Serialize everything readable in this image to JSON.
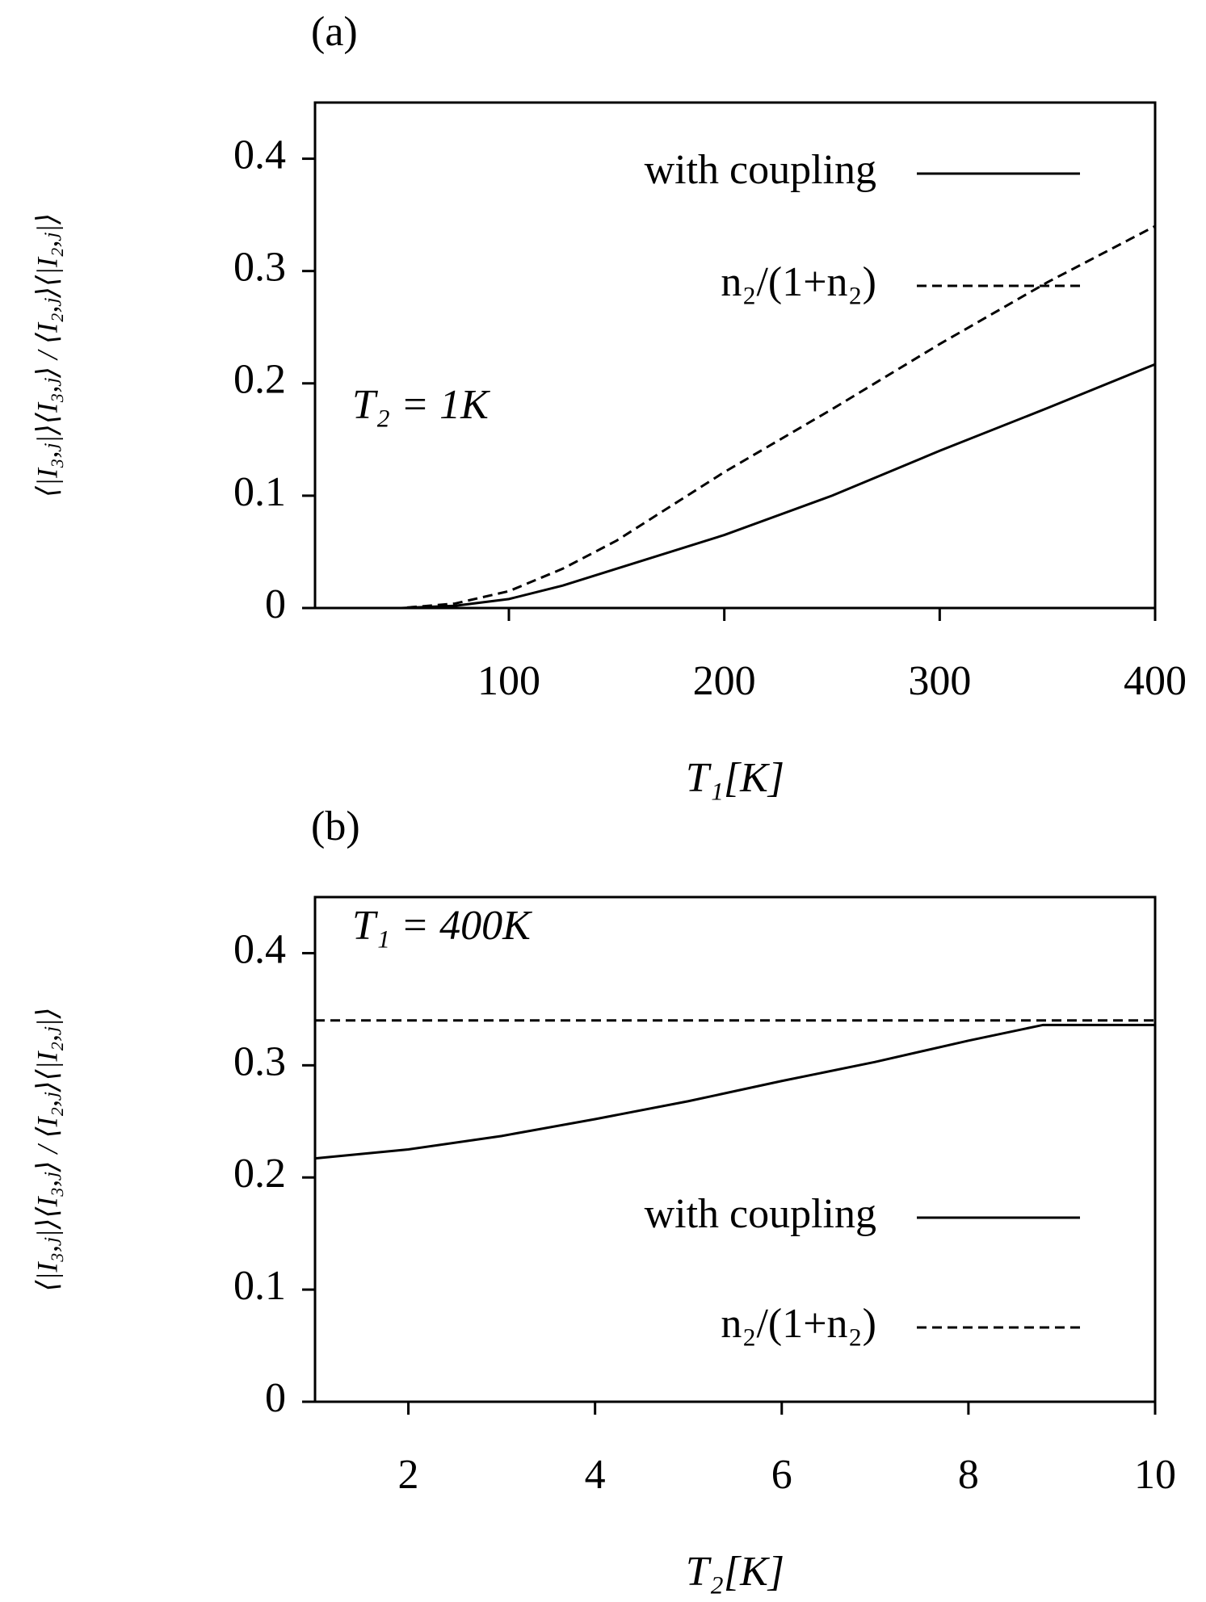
{
  "chart_data": [
    {
      "type": "line",
      "panel_label": "(a)",
      "annotation": "T₂ = 1K",
      "xlabel": "T₁[K]",
      "ylabel": "⟨|I₃,ⱼ|⟩⟨I₃,ⱼ⟩ / ⟨I₂,ⱼ⟩⟨|I₂,ⱼ|⟩",
      "x": [
        10,
        25,
        50,
        75,
        100,
        125,
        150,
        200,
        250,
        300,
        350,
        400
      ],
      "series": [
        {
          "name": "with coupling",
          "color": "#000000",
          "style": "solid",
          "values": [
            0,
            0,
            0,
            0.002,
            0.008,
            0.02,
            0.035,
            0.065,
            0.1,
            0.14,
            0.178,
            0.217
          ]
        },
        {
          "name": "n₂/(1+n₂)",
          "color": "#000000",
          "style": "dashed",
          "values": [
            0,
            0,
            0,
            0.004,
            0.015,
            0.035,
            0.06,
            0.121,
            0.177,
            0.235,
            0.29,
            0.34
          ]
        }
      ],
      "xlim": [
        10,
        400
      ],
      "xticks": [
        100,
        200,
        300,
        400
      ],
      "ylim": [
        0,
        0.45
      ],
      "yticks": [
        0,
        0.1,
        0.2,
        0.3,
        0.4
      ],
      "legend": "upper right"
    },
    {
      "type": "line",
      "panel_label": "(b)",
      "annotation": "T₁ = 400K",
      "xlabel": "T₂[K]",
      "ylabel": "⟨|I₃,ⱼ|⟩⟨I₃,ⱼ⟩ / ⟨I₂,ⱼ⟩⟨|I₂,ⱼ|⟩",
      "x": [
        1,
        2,
        3,
        4,
        5,
        6,
        7,
        8,
        8.8,
        9,
        10
      ],
      "series": [
        {
          "name": "with coupling",
          "color": "#000000",
          "style": "solid",
          "values": [
            0.217,
            0.225,
            0.237,
            0.252,
            0.268,
            0.286,
            0.303,
            0.322,
            0.336,
            0.336,
            0.336
          ]
        },
        {
          "name": "n₂/(1+n₂)",
          "color": "#000000",
          "style": "dashed",
          "values": [
            0.34,
            0.34,
            0.34,
            0.34,
            0.34,
            0.34,
            0.34,
            0.34,
            0.34,
            0.34,
            0.34
          ]
        }
      ],
      "xlim": [
        1,
        10
      ],
      "xticks": [
        2,
        4,
        6,
        8,
        10
      ],
      "ylim": [
        0,
        0.45
      ],
      "yticks": [
        0,
        0.1,
        0.2,
        0.3,
        0.4
      ],
      "legend": "lower right"
    }
  ]
}
